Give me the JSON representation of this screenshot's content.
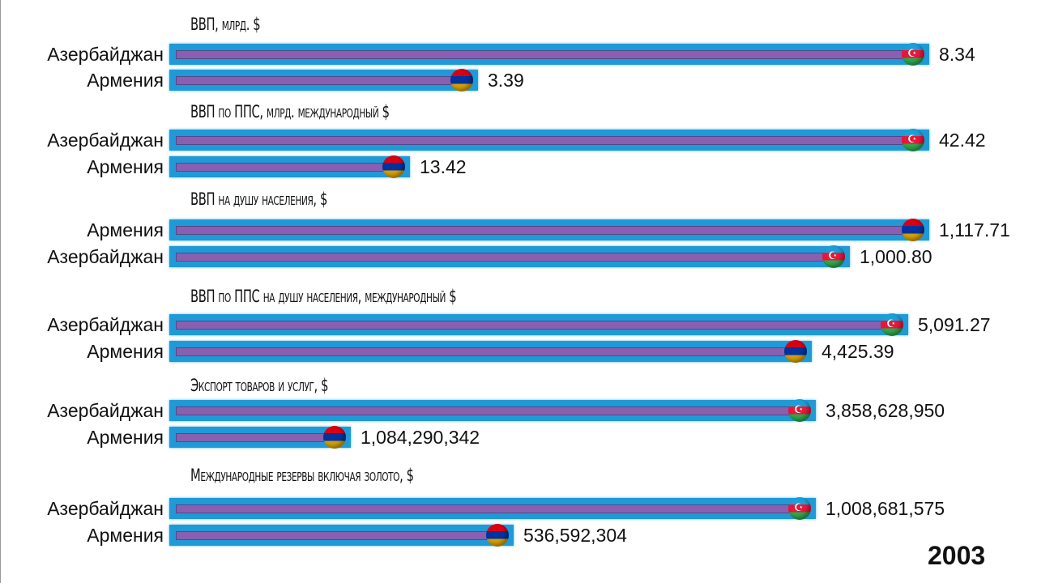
{
  "chart_data": {
    "type": "bar",
    "orientation": "horizontal",
    "year": "2003",
    "groups": [
      {
        "title": "ВВП, млрд. $",
        "scale_max": 8.34,
        "bars": [
          {
            "country": "Азербайджан",
            "flag": "az",
            "value": 8.34,
            "label": "8.34"
          },
          {
            "country": "Армения",
            "flag": "am",
            "value": 3.39,
            "label": "3.39"
          }
        ]
      },
      {
        "title": "ВВП по ППС, млрд. международный $",
        "scale_max": 42.42,
        "bars": [
          {
            "country": "Азербайджан",
            "flag": "az",
            "value": 42.42,
            "label": "42.42"
          },
          {
            "country": "Армения",
            "flag": "am",
            "value": 13.42,
            "label": "13.42"
          }
        ]
      },
      {
        "title": "ВВП на душу населения,  $",
        "scale_max": 1117.71,
        "bars": [
          {
            "country": "Армения",
            "flag": "am",
            "value": 1117.71,
            "label": "1,117.71"
          },
          {
            "country": "Азербайджан",
            "flag": "az",
            "value": 1000.8,
            "label": "1,000.80"
          }
        ]
      },
      {
        "title": "ВВП по ППС на душу населения,  международный $",
        "scale_max": 5237,
        "bars": [
          {
            "country": "Азербайджан",
            "flag": "az",
            "value": 5091.27,
            "label": "5,091.27"
          },
          {
            "country": "Армения",
            "flag": "am",
            "value": 4425.39,
            "label": "4,425.39"
          }
        ]
      },
      {
        "title": "Экспорт товаров и услуг, $",
        "scale_max": 4535000000,
        "bars": [
          {
            "country": "Азербайджан",
            "flag": "az",
            "value": 3858628950,
            "label": "3,858,628,950"
          },
          {
            "country": "Армения",
            "flag": "am",
            "value": 1084290342,
            "label": "1,084,290,342"
          }
        ]
      },
      {
        "title": "Международные резервы включая золото, $",
        "scale_max": 1185000000,
        "bars": [
          {
            "country": "Азербайджан",
            "flag": "az",
            "value": 1008681575,
            "label": "1,008,681,575"
          },
          {
            "country": "Армения",
            "flag": "am",
            "value": 536592304,
            "label": "536,592,304"
          }
        ]
      }
    ]
  }
}
